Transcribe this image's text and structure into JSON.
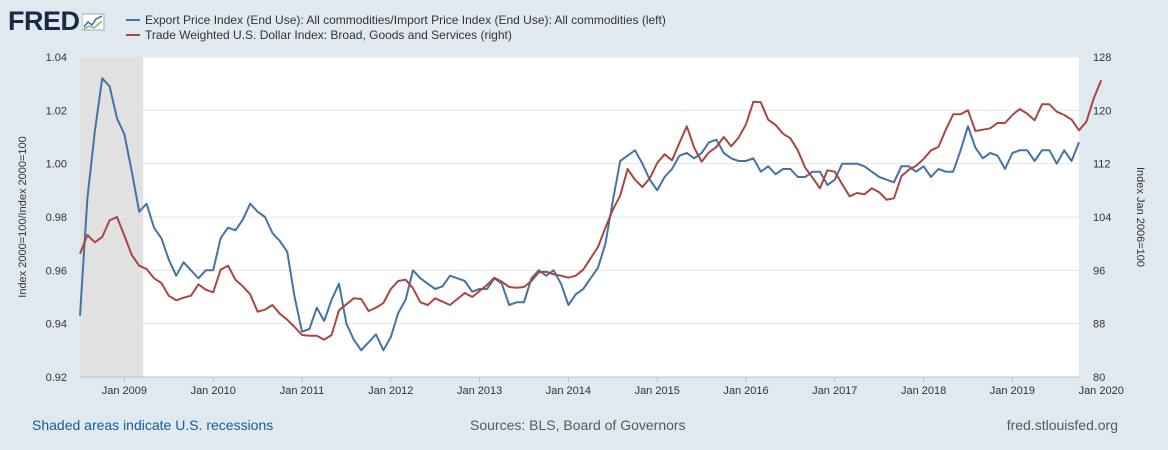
{
  "header": {
    "logo_text": "FRED",
    "logo_icon": "fred-trend-icon"
  },
  "legend": [
    {
      "label": "Export Price Index (End Use): All commodities/Import Price Index (End Use): All commodities (left)",
      "color": "#4572a7"
    },
    {
      "label": "Trade Weighted U.S. Dollar Index: Broad, Goods and Services (right)",
      "color": "#aa4643"
    }
  ],
  "footer": {
    "recession_note": "Shaded areas indicate U.S. recessions",
    "sources": "Sources: BLS, Board of Governors",
    "site": "fred.stlouisfed.org"
  },
  "chart_data": {
    "type": "line",
    "x_start": "2008-07",
    "x_end": "2020-04",
    "x_ticks": [
      {
        "label": "Jan 2009",
        "month": 6
      },
      {
        "label": "Jan 2010",
        "month": 18
      },
      {
        "label": "Jan 2011",
        "month": 30
      },
      {
        "label": "Jan 2012",
        "month": 42
      },
      {
        "label": "Jan 2013",
        "month": 54
      },
      {
        "label": "Jan 2014",
        "month": 66
      },
      {
        "label": "Jan 2015",
        "month": 78
      },
      {
        "label": "Jan 2016",
        "month": 90
      },
      {
        "label": "Jan 2017",
        "month": 102
      },
      {
        "label": "Jan 2018",
        "month": 114
      },
      {
        "label": "Jan 2019",
        "month": 126
      },
      {
        "label": "Jan 2020",
        "month": 138
      }
    ],
    "y_left": {
      "label": "Index 2000=100/Index 2000=100",
      "range": [
        0.92,
        1.04
      ],
      "ticks": [
        "0.92",
        "0.94",
        "0.96",
        "0.98",
        "1.00",
        "1.02",
        "1.04"
      ]
    },
    "y_right": {
      "label": "Index Jan 2006=100",
      "range": [
        80,
        128
      ],
      "ticks": [
        "80",
        "88",
        "96",
        "104",
        "112",
        "120",
        "128"
      ]
    },
    "recessions": [
      {
        "start": 0,
        "end": 8
      }
    ],
    "series": [
      {
        "name": "Export Price Index (End Use): All commodities/Import Price Index (End Use): All commodities (left)",
        "axis": "left",
        "color": "#4572a7",
        "values": [
          0.943,
          0.987,
          1.012,
          1.032,
          1.029,
          1.017,
          1.011,
          0.997,
          0.982,
          0.985,
          0.976,
          0.972,
          0.964,
          0.958,
          0.963,
          0.96,
          0.957,
          0.96,
          0.96,
          0.972,
          0.976,
          0.975,
          0.979,
          0.985,
          0.982,
          0.98,
          0.974,
          0.971,
          0.967,
          0.95,
          0.937,
          0.938,
          0.946,
          0.941,
          0.949,
          0.955,
          0.94,
          0.934,
          0.93,
          0.933,
          0.936,
          0.93,
          0.935,
          0.944,
          0.949,
          0.96,
          0.957,
          0.955,
          0.953,
          0.954,
          0.958,
          0.957,
          0.956,
          0.952,
          0.953,
          0.953,
          0.957,
          0.955,
          0.947,
          0.948,
          0.948,
          0.957,
          0.96,
          0.958,
          0.96,
          0.955,
          0.947,
          0.951,
          0.953,
          0.957,
          0.961,
          0.97,
          0.986,
          1.001,
          1.003,
          1.005,
          1.0,
          0.994,
          0.99,
          0.995,
          0.998,
          1.003,
          1.004,
          1.002,
          1.004,
          1.008,
          1.009,
          1.004,
          1.002,
          1.001,
          1.001,
          1.002,
          0.997,
          0.999,
          0.996,
          0.998,
          0.998,
          0.995,
          0.995,
          0.997,
          0.997,
          0.992,
          0.994,
          1.0,
          1.0,
          1.0,
          0.999,
          0.997,
          0.995,
          0.994,
          0.993,
          0.999,
          0.999,
          0.997,
          0.999,
          0.995,
          0.998,
          0.997,
          0.997,
          1.005,
          1.014,
          1.006,
          1.002,
          1.004,
          1.003,
          0.998,
          1.004,
          1.005,
          1.005,
          1.001,
          1.005,
          1.005,
          1.0,
          1.005,
          1.001,
          1.008
        ]
      },
      {
        "name": "Trade Weighted U.S. Dollar Index: Broad, Goods and Services (right)",
        "axis": "right",
        "color": "#aa4643",
        "values": [
          98.5,
          101.3,
          100.2,
          101.0,
          103.5,
          104.0,
          101.2,
          98.3,
          96.7,
          96.2,
          94.8,
          94.1,
          92.2,
          91.5,
          91.9,
          92.2,
          93.9,
          93.1,
          92.7,
          96.1,
          96.7,
          94.6,
          93.6,
          92.4,
          89.8,
          90.1,
          90.8,
          89.5,
          88.6,
          87.5,
          86.3,
          86.2,
          86.2,
          85.6,
          86.3,
          90.0,
          90.9,
          91.8,
          91.7,
          89.9,
          90.4,
          91.1,
          93.2,
          94.4,
          94.6,
          93.3,
          91.2,
          90.8,
          91.8,
          91.3,
          90.8,
          91.7,
          92.6,
          92.0,
          92.9,
          93.8,
          94.9,
          94.3,
          93.5,
          93.4,
          93.5,
          94.4,
          95.7,
          95.8,
          95.4,
          95.2,
          94.9,
          95.2,
          96.1,
          97.8,
          99.5,
          102.4,
          105.1,
          107.2,
          111.2,
          109.6,
          108.5,
          109.8,
          112.1,
          113.4,
          112.5,
          115.1,
          117.6,
          114.4,
          112.3,
          113.7,
          114.5,
          116.0,
          114.6,
          115.9,
          117.9,
          121.3,
          121.2,
          118.6,
          117.8,
          116.5,
          115.8,
          114.0,
          111.4,
          109.9,
          108.3,
          111.0,
          110.8,
          108.9,
          107.1,
          107.6,
          107.4,
          108.3,
          107.7,
          106.6,
          106.8,
          110.1,
          111.1,
          111.7,
          112.7,
          114.0,
          114.5,
          117.1,
          119.4,
          119.4,
          120.0,
          116.9,
          117.1,
          117.3,
          118.1,
          118.1,
          119.3,
          120.2,
          119.5,
          118.5,
          120.9,
          120.9,
          119.8,
          119.3,
          118.6,
          117.0,
          118.3,
          121.8,
          124.5
        ]
      }
    ]
  }
}
